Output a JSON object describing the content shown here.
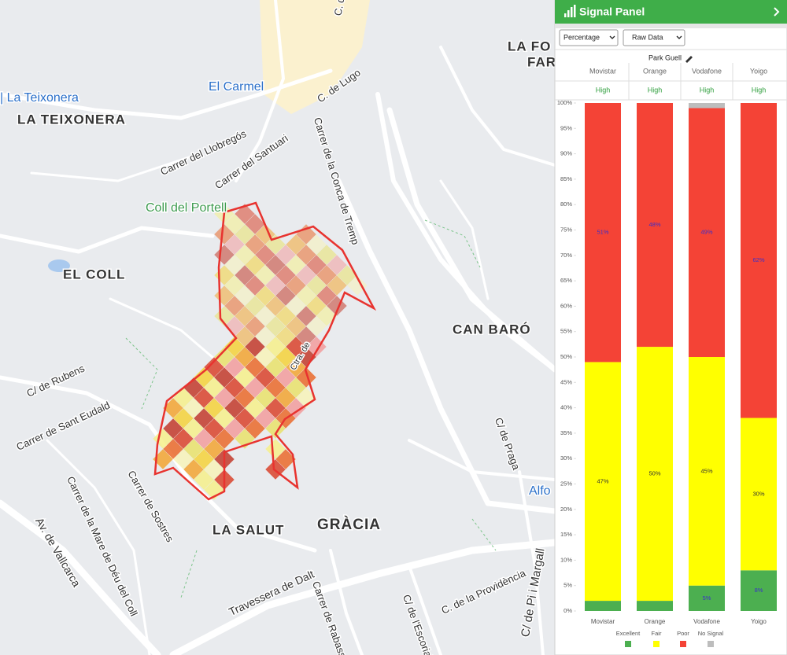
{
  "map": {
    "labels": [
      "C. de Tolrà",
      "LA FO",
      "FAR",
      "| La Teixonera",
      "El Carmel",
      "LA TEIXONERA",
      "C. de Lugo",
      "Carrer del Llobregós",
      "Carrer de la Conca de Tremp",
      "Carrer del Santuari",
      "Coll del Portell",
      "EL COLL",
      "CAN BARÓ",
      "Ctra. de",
      "C/ de Rubens",
      "Carrer de Sant Eudald",
      "C/ de Praga",
      "Alfo",
      "Carrer de Sostres",
      "Carrer de la Mare de Déu del Coll",
      "LA SALUT",
      "GRÀCIA",
      "Av. de Vallcarca",
      "Travessera de Dalt",
      "Carrer de Rabassa",
      "C/ de l'Escorial",
      "C. de la Providència",
      "C/ de Pi i Margall"
    ]
  },
  "panel": {
    "title": "Signal Panel",
    "controls": [
      "Percentage",
      "Raw Data"
    ],
    "location": "Park Guell",
    "columns": [
      {
        "name": "Movistar",
        "level": "High"
      },
      {
        "name": "Orange",
        "level": "High"
      },
      {
        "name": "Vodafone",
        "level": "High"
      },
      {
        "name": "Yoigo",
        "level": "High"
      }
    ]
  },
  "chart_data": {
    "type": "bar",
    "stacked": true,
    "categories": [
      "Movistar",
      "Orange",
      "Vodafone",
      "Yoigo"
    ],
    "series": [
      {
        "name": "Excellent",
        "color": "#4caf50",
        "values": [
          2,
          2,
          5,
          8
        ],
        "value_labels": [
          null,
          null,
          "5%",
          "8%"
        ]
      },
      {
        "name": "Fair",
        "color": "#ffff00",
        "values": [
          47,
          50,
          45,
          30
        ],
        "value_labels": [
          "47%",
          "50%",
          "45%",
          "30%"
        ]
      },
      {
        "name": "Poor",
        "color": "#f44336",
        "values": [
          51,
          48,
          49,
          62
        ],
        "value_labels": [
          "51%",
          "48%",
          "49%",
          "62%"
        ]
      },
      {
        "name": "No Signal",
        "color": "#bdbdbd",
        "values": [
          0,
          0,
          1,
          0
        ]
      }
    ],
    "ylim": [
      0,
      100
    ],
    "yticks": [
      {
        "value": 0,
        "label": "0%"
      },
      {
        "value": 5,
        "label": "5%"
      },
      {
        "value": 10,
        "label": "10%"
      },
      {
        "value": 15,
        "label": "15%"
      },
      {
        "value": 20,
        "label": "20%"
      },
      {
        "value": 25,
        "label": "25%"
      },
      {
        "value": 30,
        "label": "30%"
      },
      {
        "value": 35,
        "label": "35%"
      },
      {
        "value": 40,
        "label": "40%"
      },
      {
        "value": 45,
        "label": "45%"
      },
      {
        "value": 50,
        "label": "50%"
      },
      {
        "value": 55,
        "label": "55%"
      },
      {
        "value": 60,
        "label": "60%"
      },
      {
        "value": 65,
        "label": "65%"
      },
      {
        "value": 70,
        "label": "70%"
      },
      {
        "value": 75,
        "label": "75%"
      },
      {
        "value": 80,
        "label": "80%"
      },
      {
        "value": 85,
        "label": "85%"
      },
      {
        "value": 90,
        "label": "90%"
      },
      {
        "value": 95,
        "label": "95%"
      },
      {
        "value": 100,
        "label": "100%"
      }
    ],
    "grid": false,
    "legend": "bottom"
  }
}
